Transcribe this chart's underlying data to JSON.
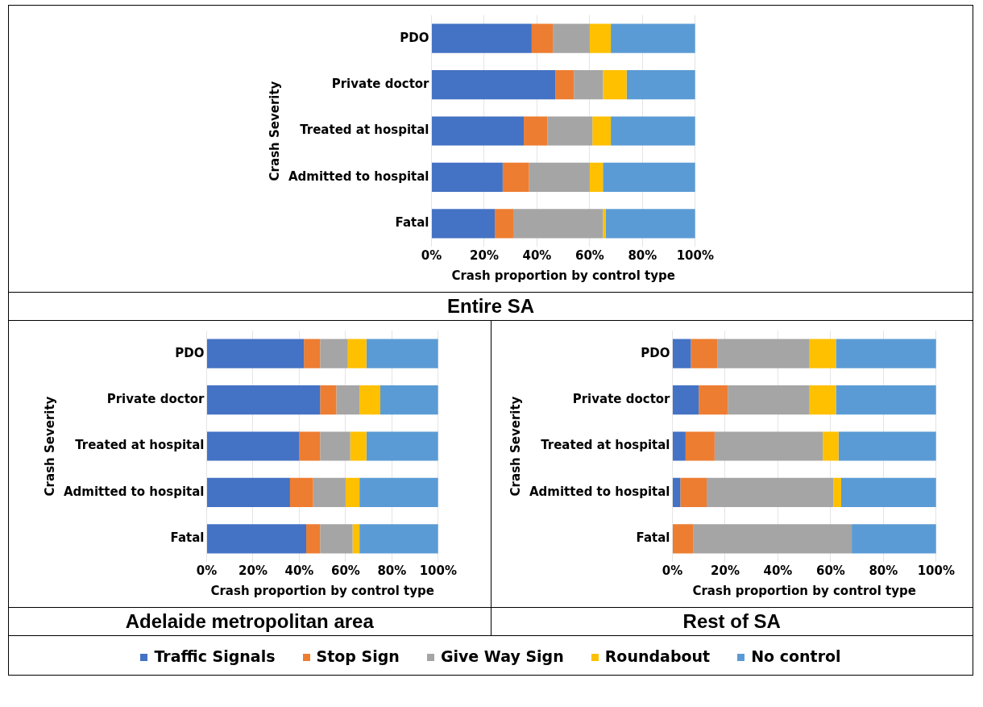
{
  "chart_data": [
    {
      "type": "bar",
      "title": "Entire SA",
      "orientation": "horizontal",
      "stacked": true,
      "ylabel": "Crash Severity",
      "xlabel": "Crash proportion by control type",
      "categories": [
        "PDO",
        "Private doctor",
        "Treated at hospital",
        "Admitted to hospital",
        "Fatal"
      ],
      "xlim": [
        0,
        100
      ],
      "xticks": [
        {
          "value": 0,
          "label": "0%"
        },
        {
          "value": 20,
          "label": "20%"
        },
        {
          "value": 40,
          "label": "40%"
        },
        {
          "value": 60,
          "label": "60%"
        },
        {
          "value": 80,
          "label": "80%"
        },
        {
          "value": 100,
          "label": "100%"
        }
      ],
      "grid": "x",
      "legend": "bottom",
      "series": [
        {
          "name": "Traffic Signals",
          "color": "#4472c4",
          "values": [
            38,
            47,
            35,
            27,
            24
          ]
        },
        {
          "name": "Stop Sign",
          "color": "#ed7d31",
          "values": [
            8,
            7,
            9,
            10,
            7
          ]
        },
        {
          "name": "Give Way Sign",
          "color": "#a5a5a5",
          "values": [
            14,
            11,
            17,
            23,
            34
          ]
        },
        {
          "name": "Roundabout",
          "color": "#ffc000",
          "values": [
            8,
            9,
            7,
            5,
            1
          ]
        },
        {
          "name": "No control",
          "color": "#5b9bd5",
          "values": [
            32,
            26,
            32,
            35,
            34
          ]
        }
      ]
    },
    {
      "type": "bar",
      "title": "Adelaide metropolitan area",
      "orientation": "horizontal",
      "stacked": true,
      "ylabel": "Crash Severity",
      "xlabel": "Crash proportion by control type",
      "categories": [
        "PDO",
        "Private doctor",
        "Treated at hospital",
        "Admitted to hospital",
        "Fatal"
      ],
      "xlim": [
        0,
        100
      ],
      "xticks": [
        {
          "value": 0,
          "label": "0%"
        },
        {
          "value": 20,
          "label": "20%"
        },
        {
          "value": 40,
          "label": "40%"
        },
        {
          "value": 60,
          "label": "60%"
        },
        {
          "value": 80,
          "label": "80%"
        },
        {
          "value": 100,
          "label": "100%"
        }
      ],
      "grid": "x",
      "series": [
        {
          "color": "#4472c4",
          "values": [
            42,
            49,
            40,
            36,
            43
          ]
        },
        {
          "color": "#ed7d31",
          "values": [
            7,
            7,
            9,
            10,
            6
          ]
        },
        {
          "color": "#a5a5a5",
          "values": [
            12,
            10,
            13,
            14,
            14
          ]
        },
        {
          "color": "#ffc000",
          "values": [
            8,
            9,
            7,
            6,
            3
          ]
        },
        {
          "color": "#5b9bd5",
          "values": [
            31,
            25,
            31,
            34,
            34
          ]
        }
      ]
    },
    {
      "type": "bar",
      "title": "Rest of SA",
      "orientation": "horizontal",
      "stacked": true,
      "ylabel": "Crash Severity",
      "xlabel": "Crash proportion by control type",
      "categories": [
        "PDO",
        "Private doctor",
        "Treated at hospital",
        "Admitted to hospital",
        "Fatal"
      ],
      "xlim": [
        0,
        100
      ],
      "xticks": [
        {
          "value": 0,
          "label": "0%"
        },
        {
          "value": 20,
          "label": "20%"
        },
        {
          "value": 40,
          "label": "40%"
        },
        {
          "value": 60,
          "label": "60%"
        },
        {
          "value": 80,
          "label": "80%"
        },
        {
          "value": 100,
          "label": "100%"
        }
      ],
      "grid": "x",
      "series": [
        {
          "color": "#4472c4",
          "values": [
            7,
            10,
            5,
            3,
            0
          ]
        },
        {
          "color": "#ed7d31",
          "values": [
            10,
            11,
            11,
            10,
            8
          ]
        },
        {
          "color": "#a5a5a5",
          "values": [
            35,
            31,
            41,
            48,
            60
          ]
        },
        {
          "color": "#ffc000",
          "values": [
            10,
            10,
            6,
            3,
            0
          ]
        },
        {
          "color": "#5b9bd5",
          "values": [
            38,
            38,
            37,
            36,
            32
          ]
        }
      ]
    }
  ]
}
